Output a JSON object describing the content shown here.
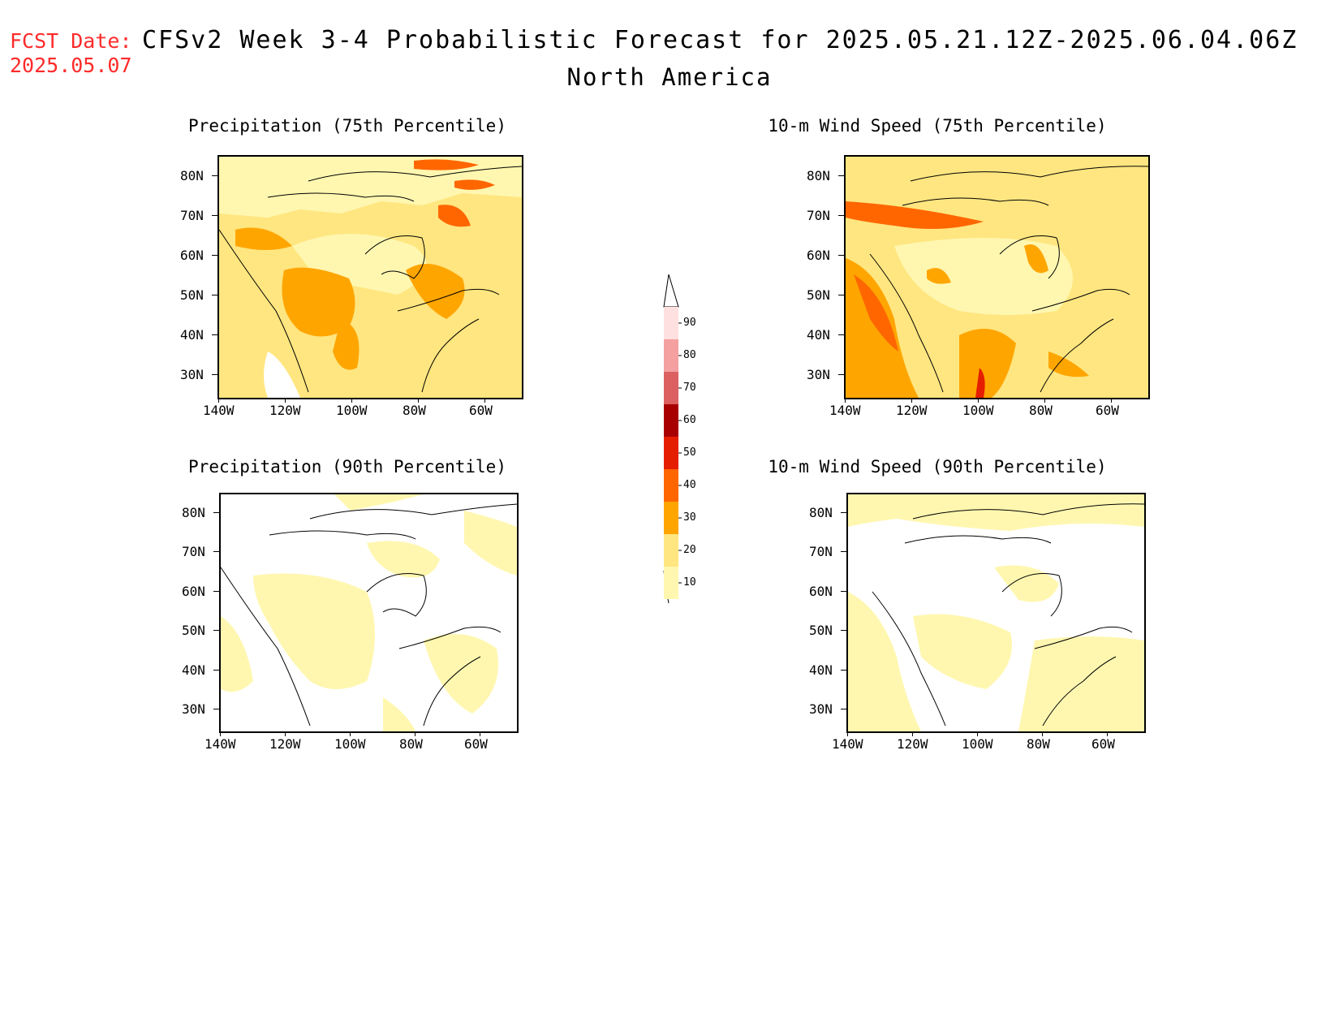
{
  "header": {
    "fcst_label": "FCST Date:",
    "fcst_date": "2025.05.07",
    "title": "CFSv2 Week 3-4 Probabilistic Forecast for 2025.05.21.12Z-2025.06.04.06Z",
    "subtitle": "North America"
  },
  "panels": [
    {
      "title": "Precipitation (75th Percentile)"
    },
    {
      "title": "10-m Wind Speed (75th Percentile)"
    },
    {
      "title": "Precipitation (90th Percentile)"
    },
    {
      "title": "10-m Wind Speed (90th Percentile)"
    }
  ],
  "axes": {
    "lat_labels": [
      "80N",
      "70N",
      "60N",
      "50N",
      "40N",
      "30N"
    ],
    "lon_labels": [
      "140W",
      "120W",
      "100W",
      "80W",
      "60W"
    ]
  },
  "colorbar": {
    "levels": [
      "10",
      "20",
      "30",
      "40",
      "50",
      "60",
      "70",
      "80",
      "90"
    ],
    "colors": [
      "#fff7b0",
      "#ffe680",
      "#ffa500",
      "#ff6600",
      "#e61e00",
      "#a80000",
      "#dc6060",
      "#f4a0a0",
      "#ffe0e0"
    ]
  }
}
